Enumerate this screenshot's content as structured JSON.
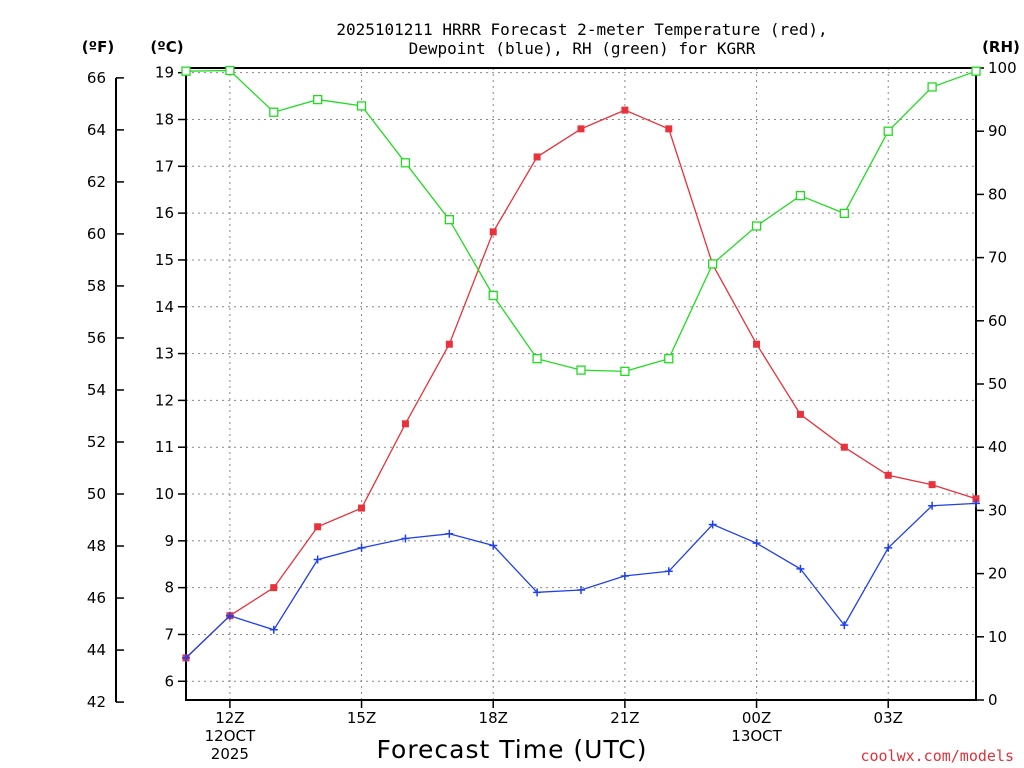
{
  "chart_data": {
    "type": "line",
    "title_lines": [
      "2025101211 HRRR Forecast 2-meter Temperature (red),",
      "Dewpoint (blue), RH (green) for KGRR"
    ],
    "xlabel": "Forecast Time (UTC)",
    "credit": "coolwx.com/models",
    "units": {
      "f": "(ºF)",
      "c": "(ºC)",
      "rh": "(RH)"
    },
    "x_hours": [
      11,
      12,
      13,
      14,
      15,
      16,
      17,
      18,
      19,
      20,
      21,
      22,
      23,
      24,
      25,
      26,
      27,
      28,
      29
    ],
    "xlim": [
      11,
      29
    ],
    "x_ticks": [
      {
        "hour": 12,
        "lines": [
          "12Z",
          "12OCT",
          "2025"
        ]
      },
      {
        "hour": 15,
        "lines": [
          "15Z"
        ]
      },
      {
        "hour": 18,
        "lines": [
          "18Z"
        ]
      },
      {
        "hour": 21,
        "lines": [
          "21Z"
        ]
      },
      {
        "hour": 24,
        "lines": [
          "00Z",
          "13OCT"
        ]
      },
      {
        "hour": 27,
        "lines": [
          "03Z"
        ]
      }
    ],
    "y_celsius": {
      "ticks": [
        6,
        7,
        8,
        9,
        10,
        11,
        12,
        13,
        14,
        15,
        16,
        17,
        18,
        19
      ],
      "range": [
        5.6,
        19.1
      ]
    },
    "y_fahrenheit": {
      "ticks": [
        42,
        44,
        46,
        48,
        50,
        52,
        54,
        56,
        58,
        60,
        62,
        64,
        66
      ]
    },
    "y_rh": {
      "ticks": [
        0,
        10,
        20,
        30,
        40,
        50,
        60,
        70,
        80,
        90,
        100
      ],
      "range": [
        0,
        100
      ]
    },
    "series": [
      {
        "name": "Temperature",
        "axis": "c",
        "color": "#e8323c",
        "marker": "filled-square",
        "values": [
          6.5,
          7.4,
          8.0,
          9.3,
          9.7,
          11.5,
          13.2,
          15.6,
          17.2,
          17.8,
          18.2,
          17.8,
          14.9,
          13.2,
          11.7,
          11.0,
          10.4,
          10.2,
          9.9
        ]
      },
      {
        "name": "Dewpoint",
        "axis": "c",
        "color": "#2040e8",
        "marker": "plus",
        "values": [
          6.5,
          7.4,
          7.1,
          8.6,
          8.85,
          9.05,
          9.15,
          8.9,
          7.9,
          7.95,
          8.25,
          8.35,
          9.35,
          8.95,
          8.4,
          7.2,
          8.85,
          9.75,
          9.8
        ]
      },
      {
        "name": "RH",
        "axis": "rh",
        "color": "#20dc20",
        "marker": "open-square",
        "values": [
          99.5,
          99.6,
          93,
          95,
          94,
          85,
          76,
          64,
          54,
          52.2,
          52,
          54,
          69,
          75,
          79.8,
          77,
          90,
          97,
          99.5
        ]
      }
    ]
  }
}
